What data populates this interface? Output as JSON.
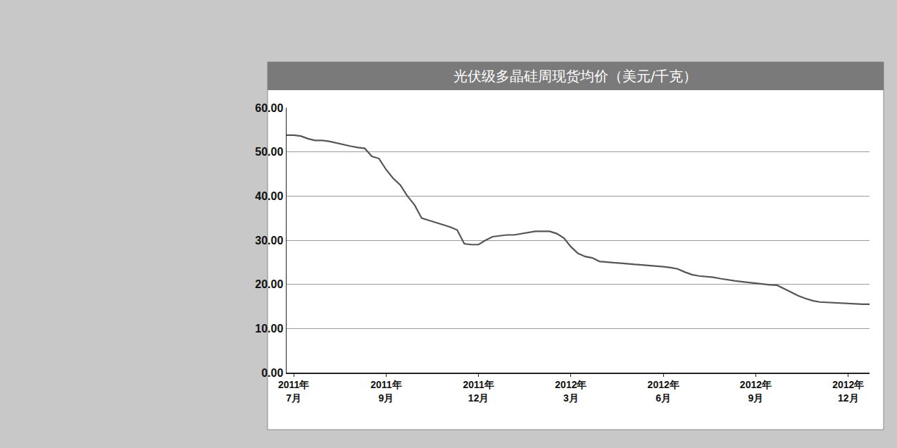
{
  "chart_data": {
    "type": "line",
    "title": "光伏级多晶硅周现货均价（美元/千克）",
    "categories": [
      null,
      "2011年\n7月",
      null,
      null,
      null,
      null,
      null,
      null,
      null,
      null,
      null,
      null,
      null,
      null,
      "2011年\n9月",
      null,
      null,
      null,
      null,
      null,
      null,
      null,
      null,
      null,
      null,
      null,
      null,
      "2011年\n12月",
      null,
      null,
      null,
      null,
      null,
      null,
      null,
      null,
      null,
      null,
      null,
      null,
      "2012年\n3月",
      null,
      null,
      null,
      null,
      null,
      null,
      null,
      null,
      null,
      null,
      null,
      null,
      "2012年\n6月",
      null,
      null,
      null,
      null,
      null,
      null,
      null,
      null,
      null,
      null,
      null,
      null,
      "2012年\n9月",
      null,
      null,
      null,
      null,
      null,
      null,
      null,
      null,
      null,
      null,
      null,
      null,
      "2012年\n12月",
      null,
      null,
      null
    ],
    "values": [
      53.8,
      53.8,
      53.6,
      53.0,
      52.6,
      52.6,
      52.4,
      52.0,
      51.6,
      51.3,
      51.0,
      50.8,
      49.0,
      48.5,
      46.0,
      44.0,
      42.5,
      40.0,
      38.0,
      35.0,
      34.5,
      34.0,
      33.5,
      33.0,
      32.3,
      29.2,
      29.0,
      29.0,
      30.0,
      30.8,
      31.0,
      31.2,
      31.2,
      31.5,
      31.8,
      32.0,
      32.0,
      32.0,
      31.5,
      30.5,
      28.5,
      27.0,
      26.3,
      26.0,
      25.2,
      25.0,
      24.9,
      24.8,
      24.6,
      24.5,
      24.4,
      24.3,
      24.2,
      24.0,
      23.8,
      23.5,
      22.8,
      22.2,
      21.9,
      21.8,
      21.6,
      21.3,
      21.0,
      20.8,
      20.6,
      20.4,
      20.2,
      20.0,
      19.9,
      19.8,
      19.0,
      18.2,
      17.4,
      16.8,
      16.3,
      16.0,
      15.9,
      15.9,
      15.8,
      15.6,
      15.5,
      15.5,
      15.5
    ],
    "color": "#555555",
    "ylim": [
      0,
      60
    ],
    "yticks": [
      {
        "value": 0,
        "label": "0.00"
      },
      {
        "value": 10,
        "label": "10.00"
      },
      {
        "value": 20,
        "label": "20.00"
      },
      {
        "value": 30,
        "label": "30.00"
      },
      {
        "value": 40,
        "label": "40.00"
      },
      {
        "value": 50,
        "label": "50.00"
      },
      {
        "value": 60,
        "label": "60.00"
      }
    ],
    "grid": true
  }
}
